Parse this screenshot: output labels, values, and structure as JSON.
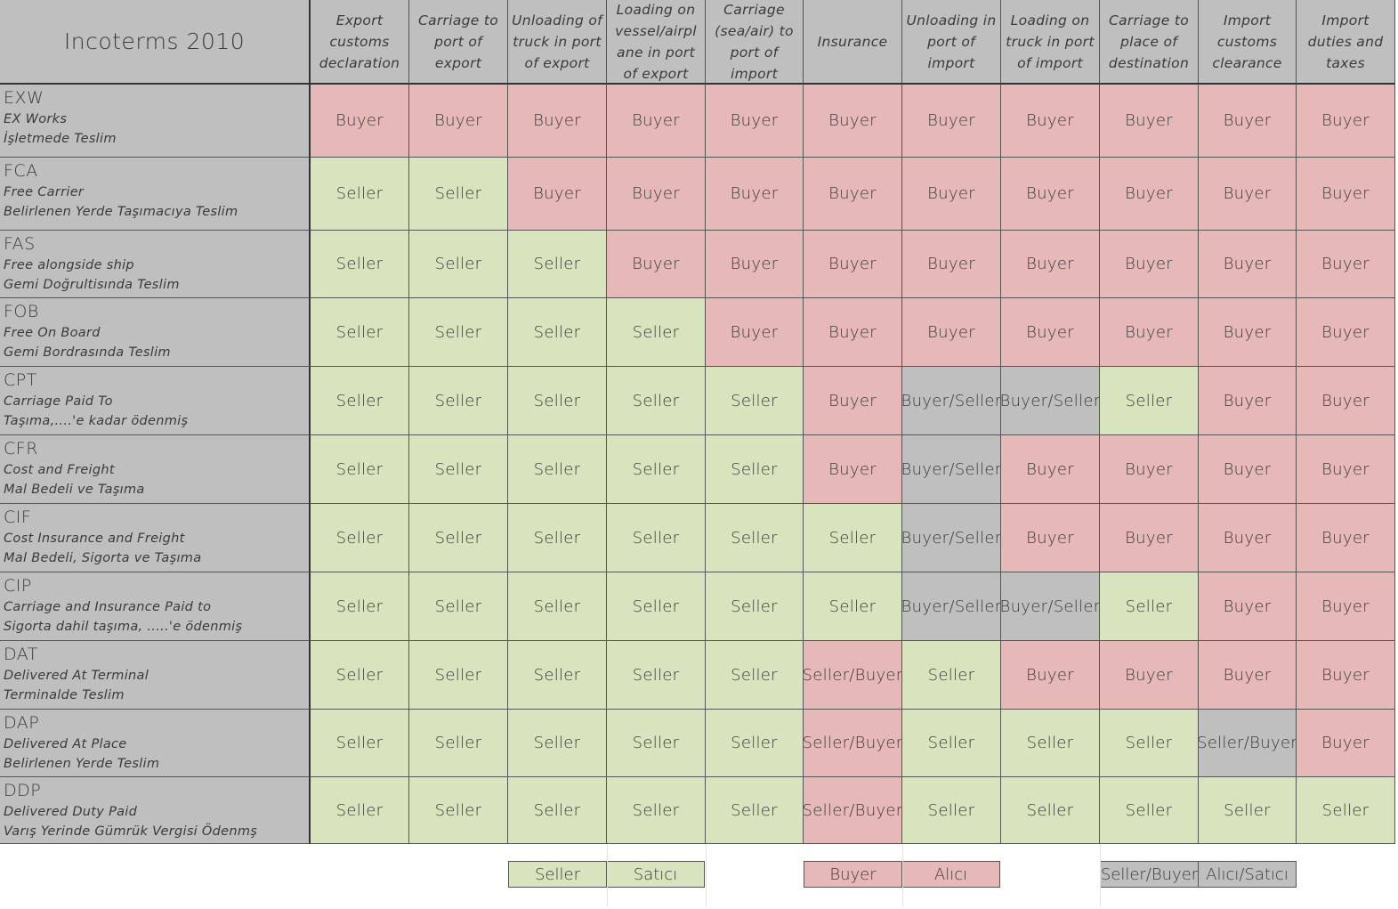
{
  "title": "Incoterms 2010",
  "columns": [
    "Export customs declaration",
    "Carriage to port of export",
    "Unloading of truck in port of export",
    "Loading on vessel/airpl ane in port of export",
    "Carriage (sea/air) to port of import",
    "Insurance",
    "Unloading in port of import",
    "Loading on truck in port of import",
    "Carriage to place of destination",
    "Import customs clearance",
    "Import duties and taxes"
  ],
  "rows": [
    {
      "code": "EXW",
      "en": "EX Works",
      "tr": "İşletmede Teslim",
      "cells": [
        "Buyer",
        "Buyer",
        "Buyer",
        "Buyer",
        "Buyer",
        "Buyer",
        "Buyer",
        "Buyer",
        "Buyer",
        "Buyer",
        "Buyer"
      ]
    },
    {
      "code": "FCA",
      "en": "Free Carrier",
      "tr": "Belirlenen Yerde Taşımacıya Teslim",
      "cells": [
        "Seller",
        "Seller",
        "Buyer",
        "Buyer",
        "Buyer",
        "Buyer",
        "Buyer",
        "Buyer",
        "Buyer",
        "Buyer",
        "Buyer"
      ]
    },
    {
      "code": "FAS",
      "en": "Free alongside ship",
      "tr": "Gemi Doğrultisında Teslim",
      "cells": [
        "Seller",
        "Seller",
        "Seller",
        "Buyer",
        "Buyer",
        "Buyer",
        "Buyer",
        "Buyer",
        "Buyer",
        "Buyer",
        "Buyer"
      ]
    },
    {
      "code": "FOB",
      "en": "Free On Board",
      "tr": "Gemi Bordrasında Teslim",
      "cells": [
        "Seller",
        "Seller",
        "Seller",
        "Seller",
        "Buyer",
        "Buyer",
        "Buyer",
        "Buyer",
        "Buyer",
        "Buyer",
        "Buyer"
      ]
    },
    {
      "code": "CPT",
      "en": "Carriage Paid To",
      "tr": "Taşıma,....'e kadar ödenmiş",
      "cells": [
        "Seller",
        "Seller",
        "Seller",
        "Seller",
        "Seller",
        "Buyer",
        "Buyer/Seller",
        "Buyer/Seller",
        "Seller",
        "Buyer",
        "Buyer"
      ]
    },
    {
      "code": "CFR",
      "en": "Cost and Freight",
      "tr": "Mal Bedeli ve Taşıma",
      "cells": [
        "Seller",
        "Seller",
        "Seller",
        "Seller",
        "Seller",
        "Buyer",
        "Buyer/Seller",
        "Buyer",
        "Buyer",
        "Buyer",
        "Buyer"
      ]
    },
    {
      "code": "CIF",
      "en": "Cost Insurance and Freight",
      "tr": "Mal Bedeli, Sigorta ve Taşıma",
      "cells": [
        "Seller",
        "Seller",
        "Seller",
        "Seller",
        "Seller",
        "Seller",
        "Buyer/Seller",
        "Buyer",
        "Buyer",
        "Buyer",
        "Buyer"
      ]
    },
    {
      "code": "CIP",
      "en": "Carriage and Insurance Paid to",
      "tr": "Sigorta dahil taşıma, .....'e ödenmiş",
      "cells": [
        "Seller",
        "Seller",
        "Seller",
        "Seller",
        "Seller",
        "Seller",
        "Buyer/Seller",
        "Buyer/Seller",
        "Seller",
        "Buyer",
        "Buyer"
      ]
    },
    {
      "code": "DAT",
      "en": "Delivered At Terminal",
      "tr": "Terminalde Teslim",
      "cells": [
        "Seller",
        "Seller",
        "Seller",
        "Seller",
        "Seller",
        "Seller/Buyer",
        "Seller",
        "Buyer",
        "Buyer",
        "Buyer",
        "Buyer"
      ]
    },
    {
      "code": "DAP",
      "en": "Delivered At Place",
      "tr": "Belirlenen Yerde Teslim",
      "cells": [
        "Seller",
        "Seller",
        "Seller",
        "Seller",
        "Seller",
        "Seller/Buyer",
        "Seller",
        "Seller",
        "Seller",
        "Seller/Buyer",
        "Buyer"
      ]
    },
    {
      "code": "DDP",
      "en": "Delivered Duty Paid",
      "tr": "Varış Yerinde Gümrük Vergisi Ödenmş",
      "cells": [
        "Seller",
        "Seller",
        "Seller",
        "Seller",
        "Seller",
        "Seller/Buyer",
        "Seller",
        "Seller",
        "Seller",
        "Seller",
        "Seller"
      ]
    }
  ],
  "cell_colors": {
    "Seller": "#d7e4bd",
    "Buyer": "#e6b9b8",
    "Buyer/Seller": "#bfbfbf",
    "Seller/Buyer_insurance": "#e6b9b8",
    "Seller/Buyer_other": "#bfbfbf",
    "header": "#bfbfbf"
  },
  "legend": [
    {
      "label": "Seller",
      "translation": "Satıcı",
      "color": "#d7e4bd"
    },
    {
      "label": "Buyer",
      "translation": "Alıcı",
      "color": "#e6b9b8"
    },
    {
      "label": "Seller/Buyer",
      "translation": "Alıcı/Satıcı",
      "color": "#bfbfbf"
    }
  ]
}
